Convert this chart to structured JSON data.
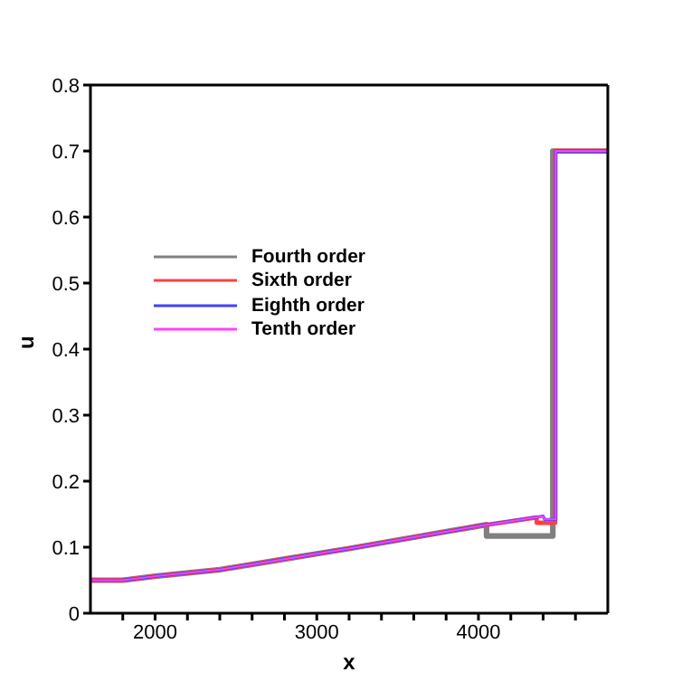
{
  "chart_data": {
    "type": "line",
    "xlabel": "x",
    "ylabel": "u",
    "xlim": [
      1600,
      4800
    ],
    "xticks": [
      {
        "value": 1800,
        "label": null
      },
      2000,
      {
        "value": 2200,
        "label": null
      },
      {
        "value": 2400,
        "label": null
      },
      {
        "value": 2600,
        "label": null
      },
      {
        "value": 2800,
        "label": null
      },
      3000,
      {
        "value": 3200,
        "label": null
      },
      {
        "value": 3400,
        "label": null
      },
      {
        "value": 3600,
        "label": null
      },
      {
        "value": 3800,
        "label": null
      },
      4000,
      {
        "value": 4200,
        "label": null
      },
      {
        "value": 4400,
        "label": null
      },
      {
        "value": 4600,
        "label": null
      }
    ],
    "ylim": [
      0,
      0.8
    ],
    "yticks": [
      0,
      0.1,
      0.2,
      0.3,
      0.4,
      0.5,
      0.6,
      0.7,
      0.8
    ],
    "series": [
      {
        "name": "Fourth order",
        "color": "#808080",
        "x": [
          1600,
          1800,
          2000,
          2400,
          2800,
          3000,
          3200,
          3600,
          4000,
          4050,
          4050,
          4460,
          4460,
          4800
        ],
        "values": [
          0.05,
          0.05,
          0.056,
          0.066,
          0.082,
          0.09,
          0.098,
          0.115,
          0.132,
          0.134,
          0.117,
          0.117,
          0.7,
          0.7
        ]
      },
      {
        "name": "Sixth order",
        "color": "#ff4040",
        "x": [
          1600,
          1800,
          2000,
          2400,
          2800,
          3000,
          3200,
          3600,
          4000,
          4360,
          4360,
          4475,
          4475,
          4800
        ],
        "values": [
          0.05,
          0.05,
          0.056,
          0.066,
          0.082,
          0.09,
          0.098,
          0.115,
          0.132,
          0.145,
          0.137,
          0.137,
          0.7,
          0.7
        ]
      },
      {
        "name": "Eighth order",
        "color": "#4040ff",
        "x": [
          1600,
          1800,
          2000,
          2400,
          2800,
          3000,
          3200,
          3600,
          4000,
          4400,
          4410,
          4478,
          4478,
          4800
        ],
        "values": [
          0.05,
          0.05,
          0.056,
          0.066,
          0.082,
          0.09,
          0.098,
          0.115,
          0.132,
          0.147,
          0.142,
          0.142,
          0.7,
          0.7
        ]
      },
      {
        "name": "Tenth order",
        "color": "#ff40ff",
        "x": [
          1600,
          1800,
          2000,
          2400,
          2800,
          3000,
          3200,
          3600,
          4000,
          4400,
          4410,
          4478,
          4478,
          4800
        ],
        "values": [
          0.05,
          0.05,
          0.056,
          0.066,
          0.082,
          0.09,
          0.098,
          0.115,
          0.132,
          0.147,
          0.142,
          0.142,
          0.7,
          0.7
        ]
      }
    ],
    "legend": "left",
    "marker": "none",
    "line_style": "solid",
    "grid": false
  }
}
